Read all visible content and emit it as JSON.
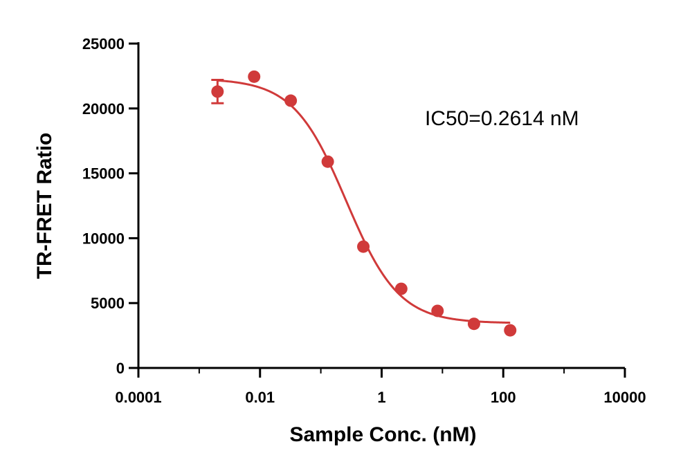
{
  "chart_data": {
    "type": "scatter",
    "xscale": "log",
    "xlim": [
      0.0001,
      10000
    ],
    "ylim": [
      0,
      25000
    ],
    "xlabel": "Sample Conc. (nM)",
    "ylabel": "TR-FRET Ratio",
    "x_ticks": [
      {
        "value": 0.0001,
        "label": "0.0001"
      },
      {
        "value": 0.01,
        "label": "0.01"
      },
      {
        "value": 1,
        "label": "1"
      },
      {
        "value": 100,
        "label": "100"
      },
      {
        "value": 10000,
        "label": "10000"
      }
    ],
    "y_ticks": [
      {
        "value": 0,
        "label": "0"
      },
      {
        "value": 5000,
        "label": "5000"
      },
      {
        "value": 10000,
        "label": "10000"
      },
      {
        "value": 15000,
        "label": "15000"
      },
      {
        "value": 20000,
        "label": "20000"
      },
      {
        "value": 25000,
        "label": "25000"
      }
    ],
    "points": [
      {
        "x": 0.002,
        "y": 21300,
        "err": 900
      },
      {
        "x": 0.008,
        "y": 22450,
        "err": 0
      },
      {
        "x": 0.032,
        "y": 20600,
        "err": 0
      },
      {
        "x": 0.13,
        "y": 15900,
        "err": 0
      },
      {
        "x": 0.5,
        "y": 9350,
        "err": 0
      },
      {
        "x": 2.1,
        "y": 6100,
        "err": 0
      },
      {
        "x": 8.3,
        "y": 4400,
        "err": 0
      },
      {
        "x": 33,
        "y": 3400,
        "err": 0
      },
      {
        "x": 130,
        "y": 2900,
        "err": 0
      }
    ],
    "fit": {
      "model": "4PL",
      "top": 22300,
      "bottom": 3450,
      "ic50": 0.2614,
      "hill": 1.0,
      "x_range": [
        0.002,
        130
      ]
    },
    "annotation": "IC50=0.2614 nM",
    "color": "#d03a3a",
    "grid": false,
    "legend": false
  }
}
